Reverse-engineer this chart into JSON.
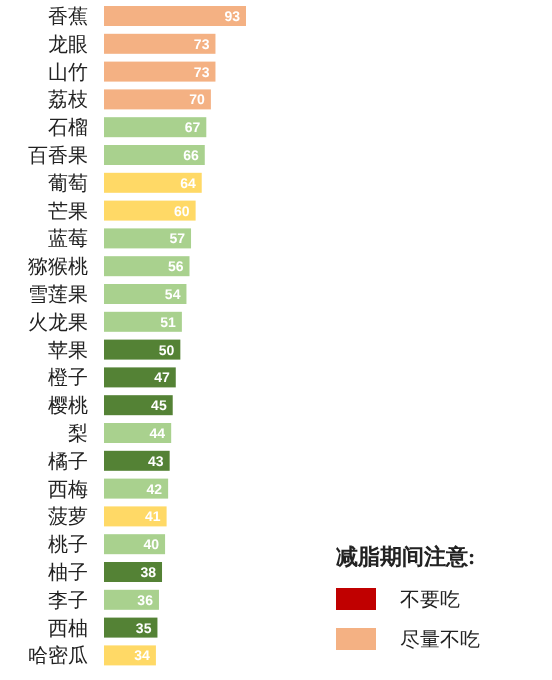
{
  "chart_data": {
    "type": "bar",
    "orientation": "horizontal",
    "data_labels": true,
    "legend": "bottom right",
    "legend_title": "减脂期间注意:",
    "categories": [
      "香蕉",
      "龙眼",
      "山竹",
      "荔枝",
      "石榴",
      "百香果",
      "葡萄",
      "芒果",
      "蓝莓",
      "猕猴桃",
      "雪莲果",
      "火龙果",
      "苹果",
      "橙子",
      "樱桃",
      "梨",
      "橘子",
      "西梅",
      "菠萝",
      "桃子",
      "柚子",
      "李子",
      "西柚",
      "哈密瓜"
    ],
    "series": [
      {
        "name": "不要吃",
        "color": "#c00000",
        "values": [
          null,
          null,
          null,
          null,
          null,
          null,
          null,
          null,
          null,
          null,
          null,
          null,
          null,
          null,
          null,
          null,
          null,
          null,
          null,
          null,
          null,
          null,
          null,
          null
        ]
      },
      {
        "name": "尽量不吃",
        "color": "#f4b183",
        "values": [
          93,
          73,
          73,
          70,
          null,
          null,
          null,
          null,
          null,
          null,
          null,
          null,
          null,
          null,
          null,
          null,
          null,
          null,
          null,
          null,
          null,
          null,
          null,
          null
        ]
      },
      {
        "color": "#a9d18e",
        "values": [
          null,
          null,
          null,
          null,
          67,
          66,
          null,
          null,
          57,
          56,
          54,
          51,
          null,
          null,
          null,
          44,
          null,
          42,
          null,
          40,
          null,
          36,
          null,
          null
        ]
      },
      {
        "color": "#ffd966",
        "values": [
          null,
          null,
          null,
          null,
          null,
          null,
          64,
          60,
          null,
          null,
          null,
          null,
          null,
          null,
          null,
          null,
          null,
          null,
          41,
          null,
          null,
          null,
          null,
          34
        ]
      },
      {
        "color": "#548235",
        "values": [
          null,
          null,
          null,
          null,
          null,
          null,
          null,
          null,
          null,
          null,
          null,
          null,
          50,
          47,
          45,
          null,
          43,
          null,
          null,
          null,
          38,
          null,
          35,
          null
        ]
      }
    ]
  }
}
